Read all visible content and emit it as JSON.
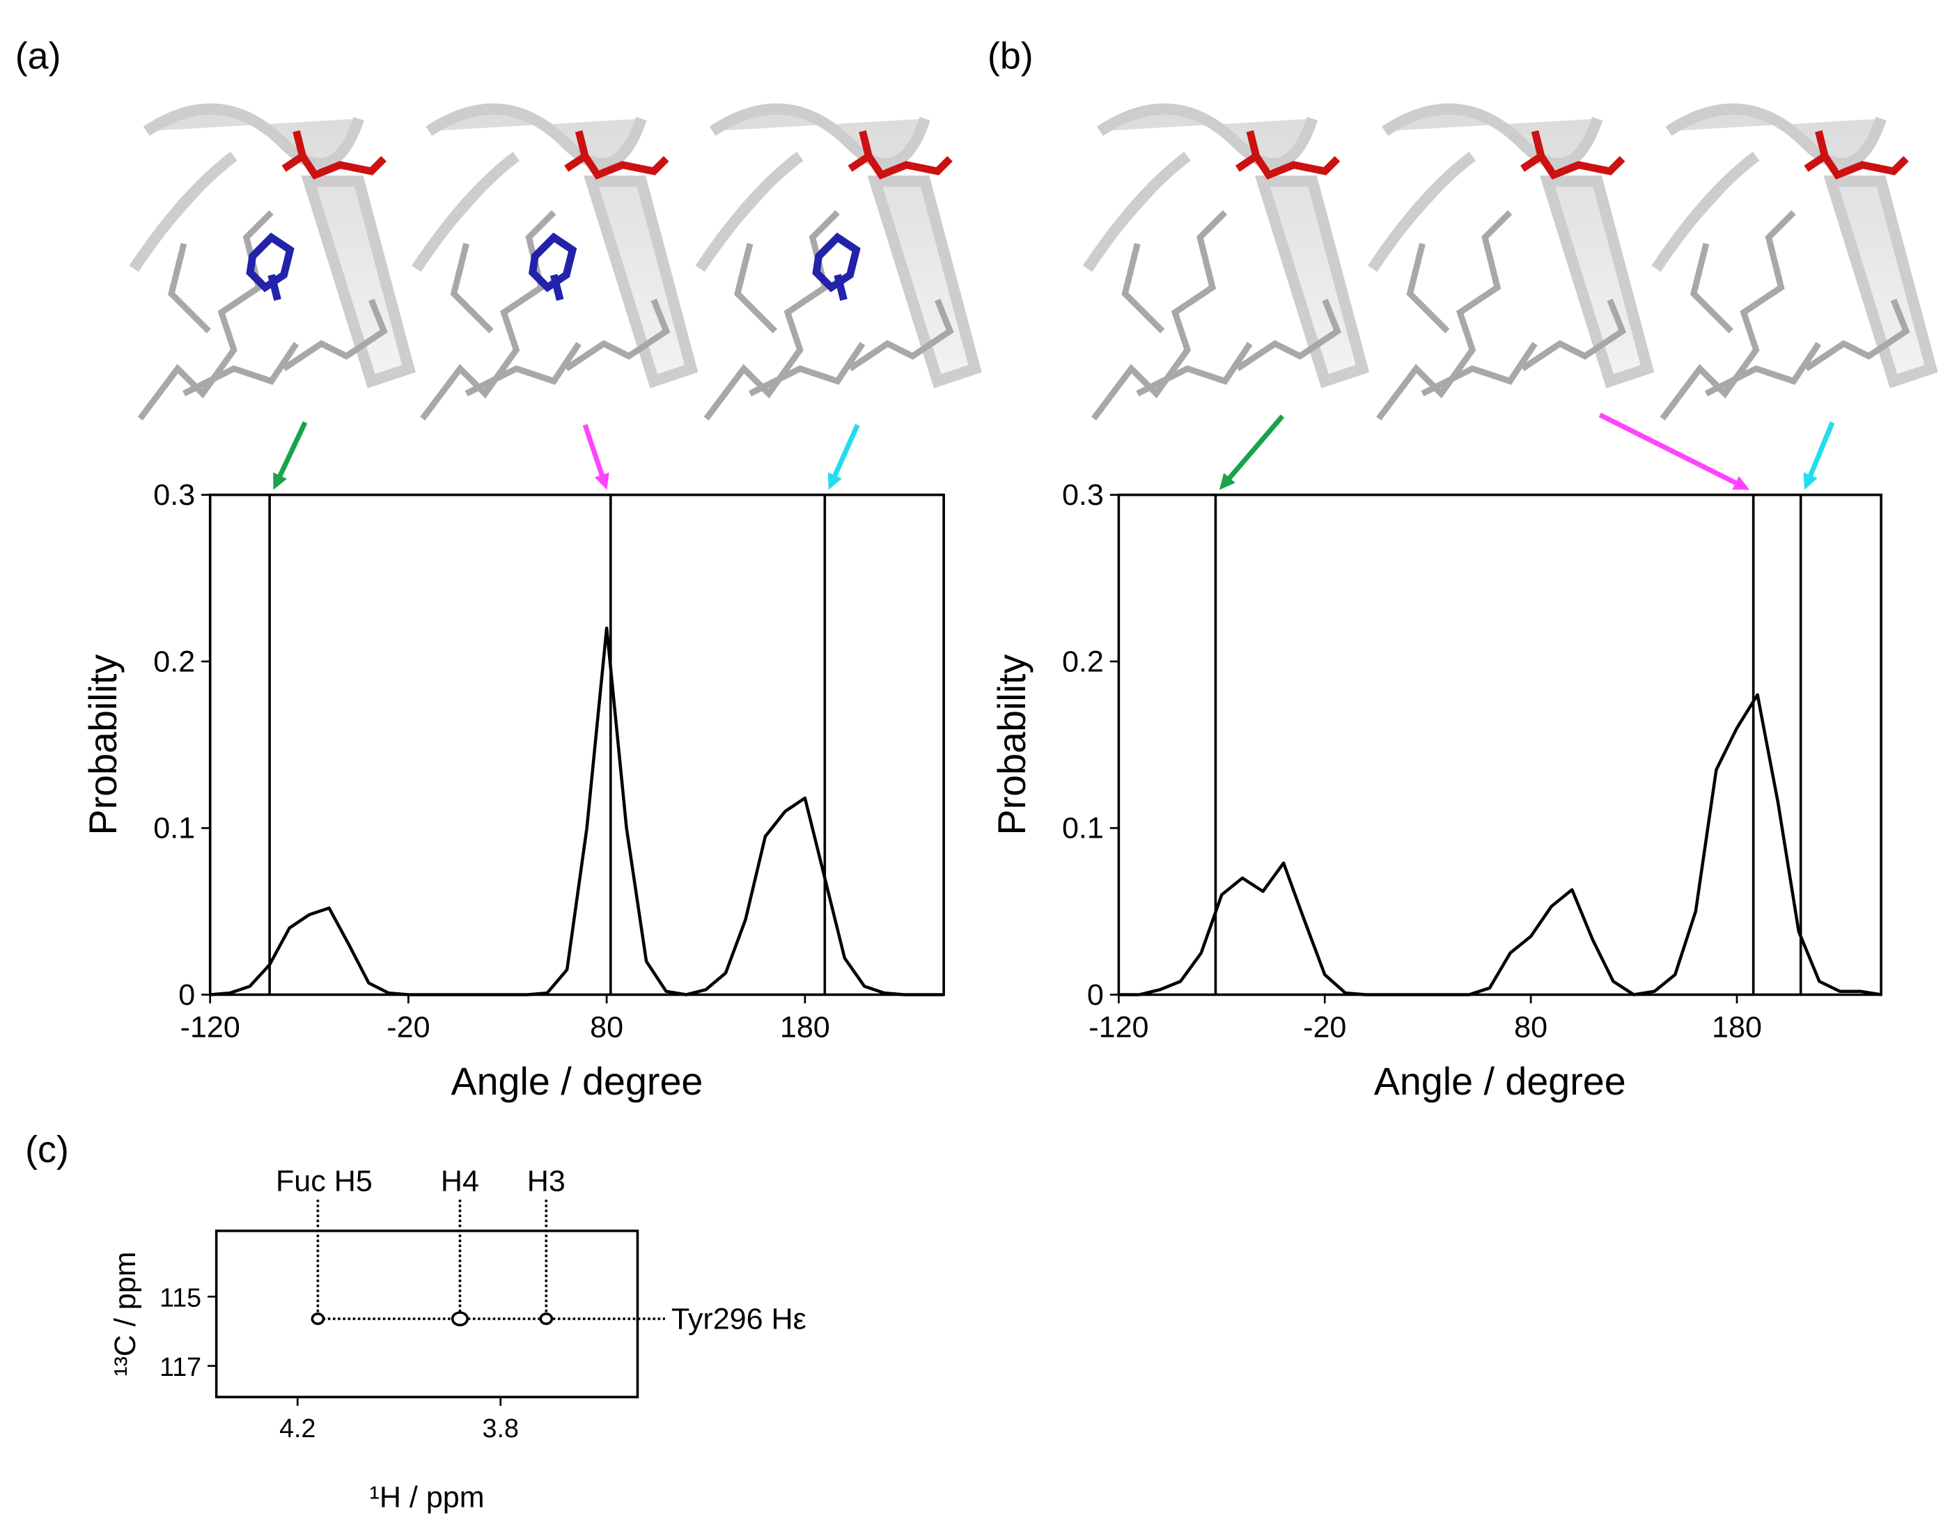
{
  "chart_data": [
    {
      "type": "line",
      "panel_label": "(a)",
      "xlabel": "Angle / degree",
      "ylabel": "Probability",
      "x": [
        -120,
        -110,
        -100,
        -90,
        -80,
        -70,
        -60,
        -50,
        -40,
        -30,
        -20,
        -10,
        0,
        10,
        20,
        30,
        40,
        50,
        60,
        70,
        80,
        90,
        100,
        110,
        120,
        130,
        140,
        150,
        160,
        170,
        180,
        190,
        200,
        210,
        220,
        230,
        240,
        250
      ],
      "series": [
        {
          "color": "#000000",
          "values": [
            0,
            0.001,
            0.005,
            0.018,
            0.04,
            0.048,
            0.052,
            0.03,
            0.007,
            0.001,
            0,
            0,
            0,
            0,
            0,
            0,
            0,
            0.001,
            0.015,
            0.1,
            0.22,
            0.1,
            0.02,
            0.002,
            0,
            0.003,
            0.013,
            0.045,
            0.095,
            0.11,
            0.118,
            0.07,
            0.022,
            0.005,
            0.001,
            0,
            0,
            0
          ]
        }
      ],
      "xlim": [
        -120,
        250
      ],
      "ylim": [
        0,
        0.3
      ],
      "xticks": [
        -120,
        -20,
        80,
        180
      ],
      "yticks": [
        0,
        0.1,
        0.2,
        0.3
      ],
      "markers": [
        -90,
        82,
        190
      ],
      "marker_colors": [
        "#1aa34a",
        "#ff44ff",
        "#22ddee"
      ]
    },
    {
      "type": "line",
      "panel_label": "(b)",
      "xlabel": "Angle / degree",
      "ylabel": "Probability",
      "x": [
        -120,
        -110,
        -100,
        -90,
        -80,
        -70,
        -60,
        -50,
        -40,
        -30,
        -20,
        -10,
        0,
        10,
        20,
        30,
        40,
        50,
        60,
        70,
        80,
        90,
        100,
        110,
        120,
        130,
        140,
        150,
        160,
        170,
        180,
        190,
        200,
        210,
        220,
        230,
        240,
        250
      ],
      "series": [
        {
          "color": "#000000",
          "values": [
            0,
            0,
            0.003,
            0.008,
            0.025,
            0.06,
            0.07,
            0.062,
            0.079,
            0.045,
            0.012,
            0.001,
            0,
            0,
            0,
            0,
            0,
            0,
            0.004,
            0.025,
            0.035,
            0.053,
            0.063,
            0.033,
            0.008,
            0,
            0.002,
            0.012,
            0.05,
            0.135,
            0.16,
            0.18,
            0.115,
            0.038,
            0.008,
            0.002,
            0.002,
            0
          ]
        }
      ],
      "xlim": [
        -120,
        250
      ],
      "ylim": [
        0,
        0.3
      ],
      "xticks": [
        -120,
        -20,
        80,
        180
      ],
      "yticks": [
        0,
        0.1,
        0.2,
        0.3
      ],
      "markers": [
        -73,
        188,
        211
      ],
      "marker_colors": [
        "#1aa34a",
        "#ff44ff",
        "#22ddee"
      ]
    },
    {
      "type": "scatter",
      "panel_label": "(c)",
      "xlabel": "¹H / ppm",
      "ylabel": "¹³C / ppm",
      "x": [
        4.16,
        3.88,
        3.71
      ],
      "values": [
        115.64,
        115.64,
        115.64
      ],
      "point_labels": [
        "Fuc H5",
        "H4",
        "H3"
      ],
      "row_label": "Tyr296 Hε",
      "xlim": [
        4.36,
        3.53
      ],
      "ylim": [
        117.9,
        113.1
      ],
      "xticks": [
        4.2,
        3.8
      ],
      "yticks": [
        115,
        117
      ]
    }
  ]
}
